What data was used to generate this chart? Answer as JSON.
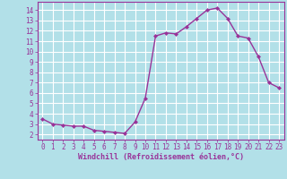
{
  "x": [
    0,
    1,
    2,
    3,
    4,
    5,
    6,
    7,
    8,
    9,
    10,
    11,
    12,
    13,
    14,
    15,
    16,
    17,
    18,
    19,
    20,
    21,
    22,
    23
  ],
  "y": [
    3.5,
    3.0,
    2.9,
    2.8,
    2.8,
    2.4,
    2.3,
    2.2,
    2.1,
    3.2,
    5.5,
    11.5,
    11.8,
    11.7,
    12.4,
    13.2,
    14.0,
    14.2,
    13.2,
    11.5,
    11.3,
    9.5,
    7.0,
    6.5
  ],
  "line_color": "#993399",
  "marker": "D",
  "marker_size": 2.0,
  "bg_color": "#b2e0e8",
  "grid_color": "#ffffff",
  "xlabel": "Windchill (Refroidissement éolien,°C)",
  "xlabel_color": "#993399",
  "tick_color": "#993399",
  "ylim": [
    1.5,
    14.8
  ],
  "xlim": [
    -0.5,
    23.5
  ],
  "yticks": [
    2,
    3,
    4,
    5,
    6,
    7,
    8,
    9,
    10,
    11,
    12,
    13,
    14
  ],
  "xticks": [
    0,
    1,
    2,
    3,
    4,
    5,
    6,
    7,
    8,
    9,
    10,
    11,
    12,
    13,
    14,
    15,
    16,
    17,
    18,
    19,
    20,
    21,
    22,
    23
  ],
  "spine_color": "#993399",
  "linewidth": 1.0
}
